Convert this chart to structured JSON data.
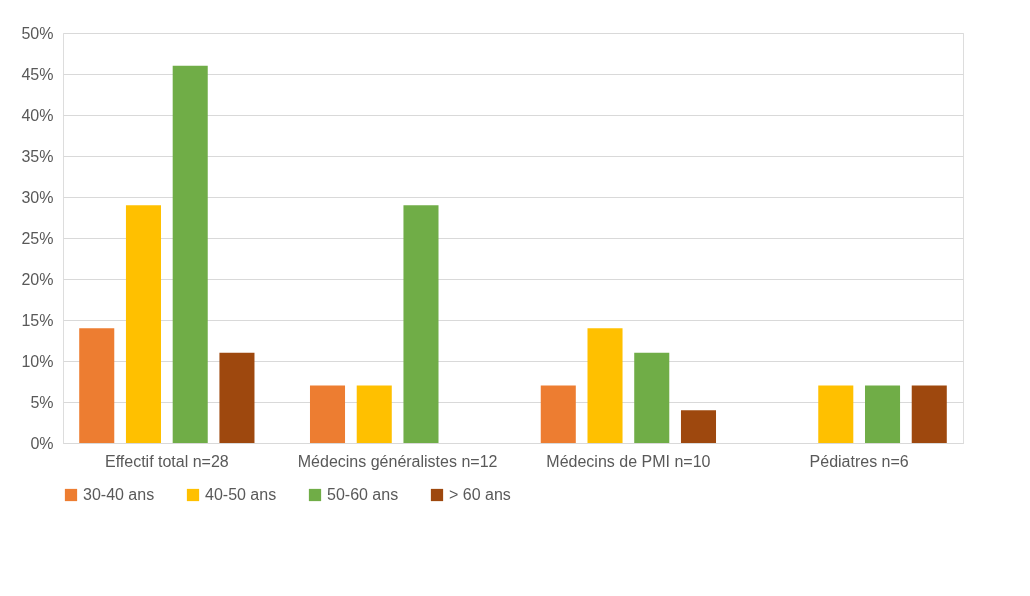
{
  "chart_data": {
    "type": "bar",
    "categories": [
      "Effectif total n=28",
      "Médecins généralistes n=12",
      "Médecins de PMI n=10",
      "Pédiatres n=6"
    ],
    "series": [
      {
        "name": "30-40 ans",
        "color": "#ed7d31",
        "values": [
          14,
          7,
          7,
          null
        ]
      },
      {
        "name": "40-50 ans",
        "color": "#ffc000",
        "values": [
          29,
          7,
          14,
          7
        ]
      },
      {
        "name": "50-60 ans",
        "color": "#70ad47",
        "values": [
          46,
          29,
          11,
          7
        ]
      },
      {
        "name": "> 60 ans",
        "color": "#9e480e",
        "values": [
          11,
          null,
          4,
          7
        ]
      }
    ],
    "ylim": [
      0,
      50
    ],
    "yticks": [
      {
        "value": 0,
        "label": "0%"
      },
      {
        "value": 5,
        "label": "5%"
      },
      {
        "value": 10,
        "label": "10%"
      },
      {
        "value": 15,
        "label": "15%"
      },
      {
        "value": 20,
        "label": "20%"
      },
      {
        "value": 25,
        "label": "25%"
      },
      {
        "value": 30,
        "label": "30%"
      },
      {
        "value": 35,
        "label": "35%"
      },
      {
        "value": 40,
        "label": "40%"
      },
      {
        "value": 45,
        "label": "45%"
      },
      {
        "value": 50,
        "label": "50%"
      }
    ],
    "grid": "y",
    "legend": "bottom"
  }
}
